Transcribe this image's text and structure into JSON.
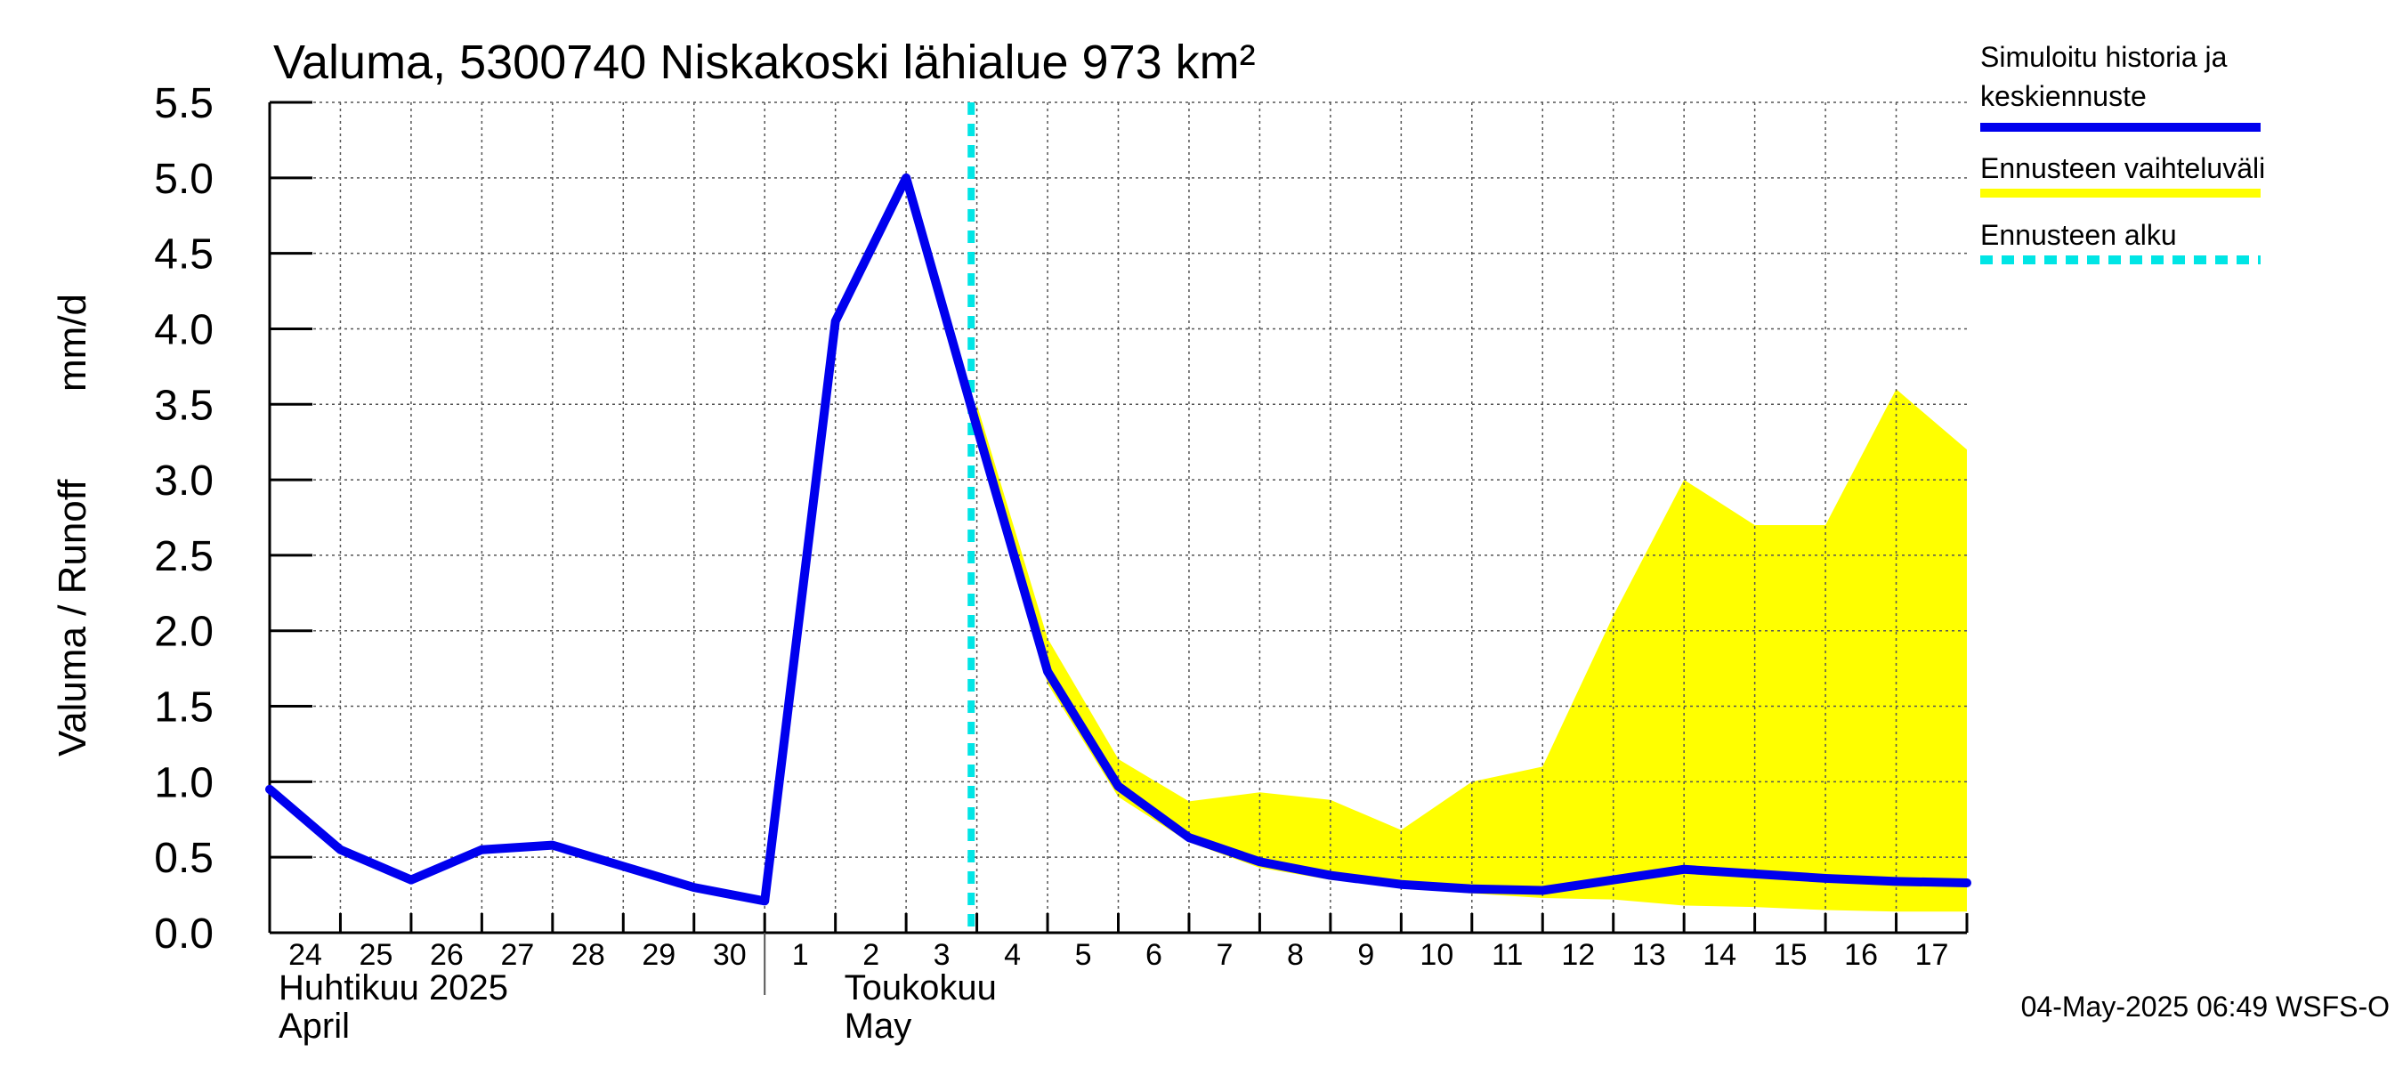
{
  "chart_data": {
    "type": "line",
    "title": "Valuma, 5300740 Niskakoski lähialue 973 km²",
    "ylabel_left": "Valuma / Runoff",
    "ylabel_unit": "mm/d",
    "ylim": [
      0,
      5.5
    ],
    "yticks": [
      "0.0",
      "0.5",
      "1.0",
      "1.5",
      "2.0",
      "2.5",
      "3.0",
      "3.5",
      "4.0",
      "4.5",
      "5.0",
      "5.5"
    ],
    "x_days": [
      "24",
      "25",
      "26",
      "27",
      "28",
      "29",
      "30",
      "1",
      "2",
      "3",
      "4",
      "5",
      "6",
      "7",
      "8",
      "9",
      "10",
      "11",
      "12",
      "13",
      "14",
      "15",
      "16",
      "17"
    ],
    "month_labels": [
      {
        "line1": "Huhtikuu  2025",
        "line2": "April",
        "day_index": 0
      },
      {
        "line1": "Toukokuu",
        "line2": "May",
        "day_index": 8
      }
    ],
    "forecast_start_index": 9.92,
    "series": [
      {
        "name": "Simuloitu historia ja keskiennuste",
        "color": "#0000ee",
        "x": [
          0,
          1,
          2,
          3,
          4,
          5,
          6,
          7,
          8,
          9,
          10,
          11,
          12,
          13,
          14,
          15,
          16,
          17,
          18,
          19,
          20,
          21,
          22,
          23,
          24
        ],
        "values": [
          0.95,
          0.55,
          0.35,
          0.55,
          0.58,
          0.44,
          0.3,
          0.21,
          4.05,
          5.0,
          3.35,
          1.73,
          0.97,
          0.63,
          0.47,
          0.38,
          0.32,
          0.29,
          0.28,
          0.35,
          0.42,
          0.39,
          0.36,
          0.34,
          0.33
        ]
      },
      {
        "name": "Ennusteen vaihteluväli",
        "color": "#ffff00",
        "x": [
          10,
          11,
          12,
          13,
          14,
          15,
          16,
          17,
          18,
          19,
          20,
          21,
          22,
          23,
          24
        ],
        "upper": [
          3.5,
          1.95,
          1.15,
          0.87,
          0.93,
          0.88,
          0.68,
          1.0,
          1.1,
          2.1,
          3.0,
          2.7,
          2.7,
          3.6,
          3.2
        ],
        "lower": [
          3.3,
          1.65,
          0.9,
          0.6,
          0.43,
          0.35,
          0.3,
          0.26,
          0.23,
          0.22,
          0.18,
          0.17,
          0.15,
          0.14,
          0.14
        ]
      }
    ],
    "legend": [
      {
        "label_lines": [
          "Simuloitu historia ja",
          "keskiennuste"
        ],
        "color": "#0000ee",
        "style": "solid"
      },
      {
        "label_lines": [
          "Ennusteen vaihteluväli"
        ],
        "color": "#ffff00",
        "style": "solid"
      },
      {
        "label_lines": [
          "Ennusteen alku"
        ],
        "color": "#00e5e5",
        "style": "dashed"
      }
    ],
    "footer": "04-May-2025 06:49 WSFS-O"
  }
}
